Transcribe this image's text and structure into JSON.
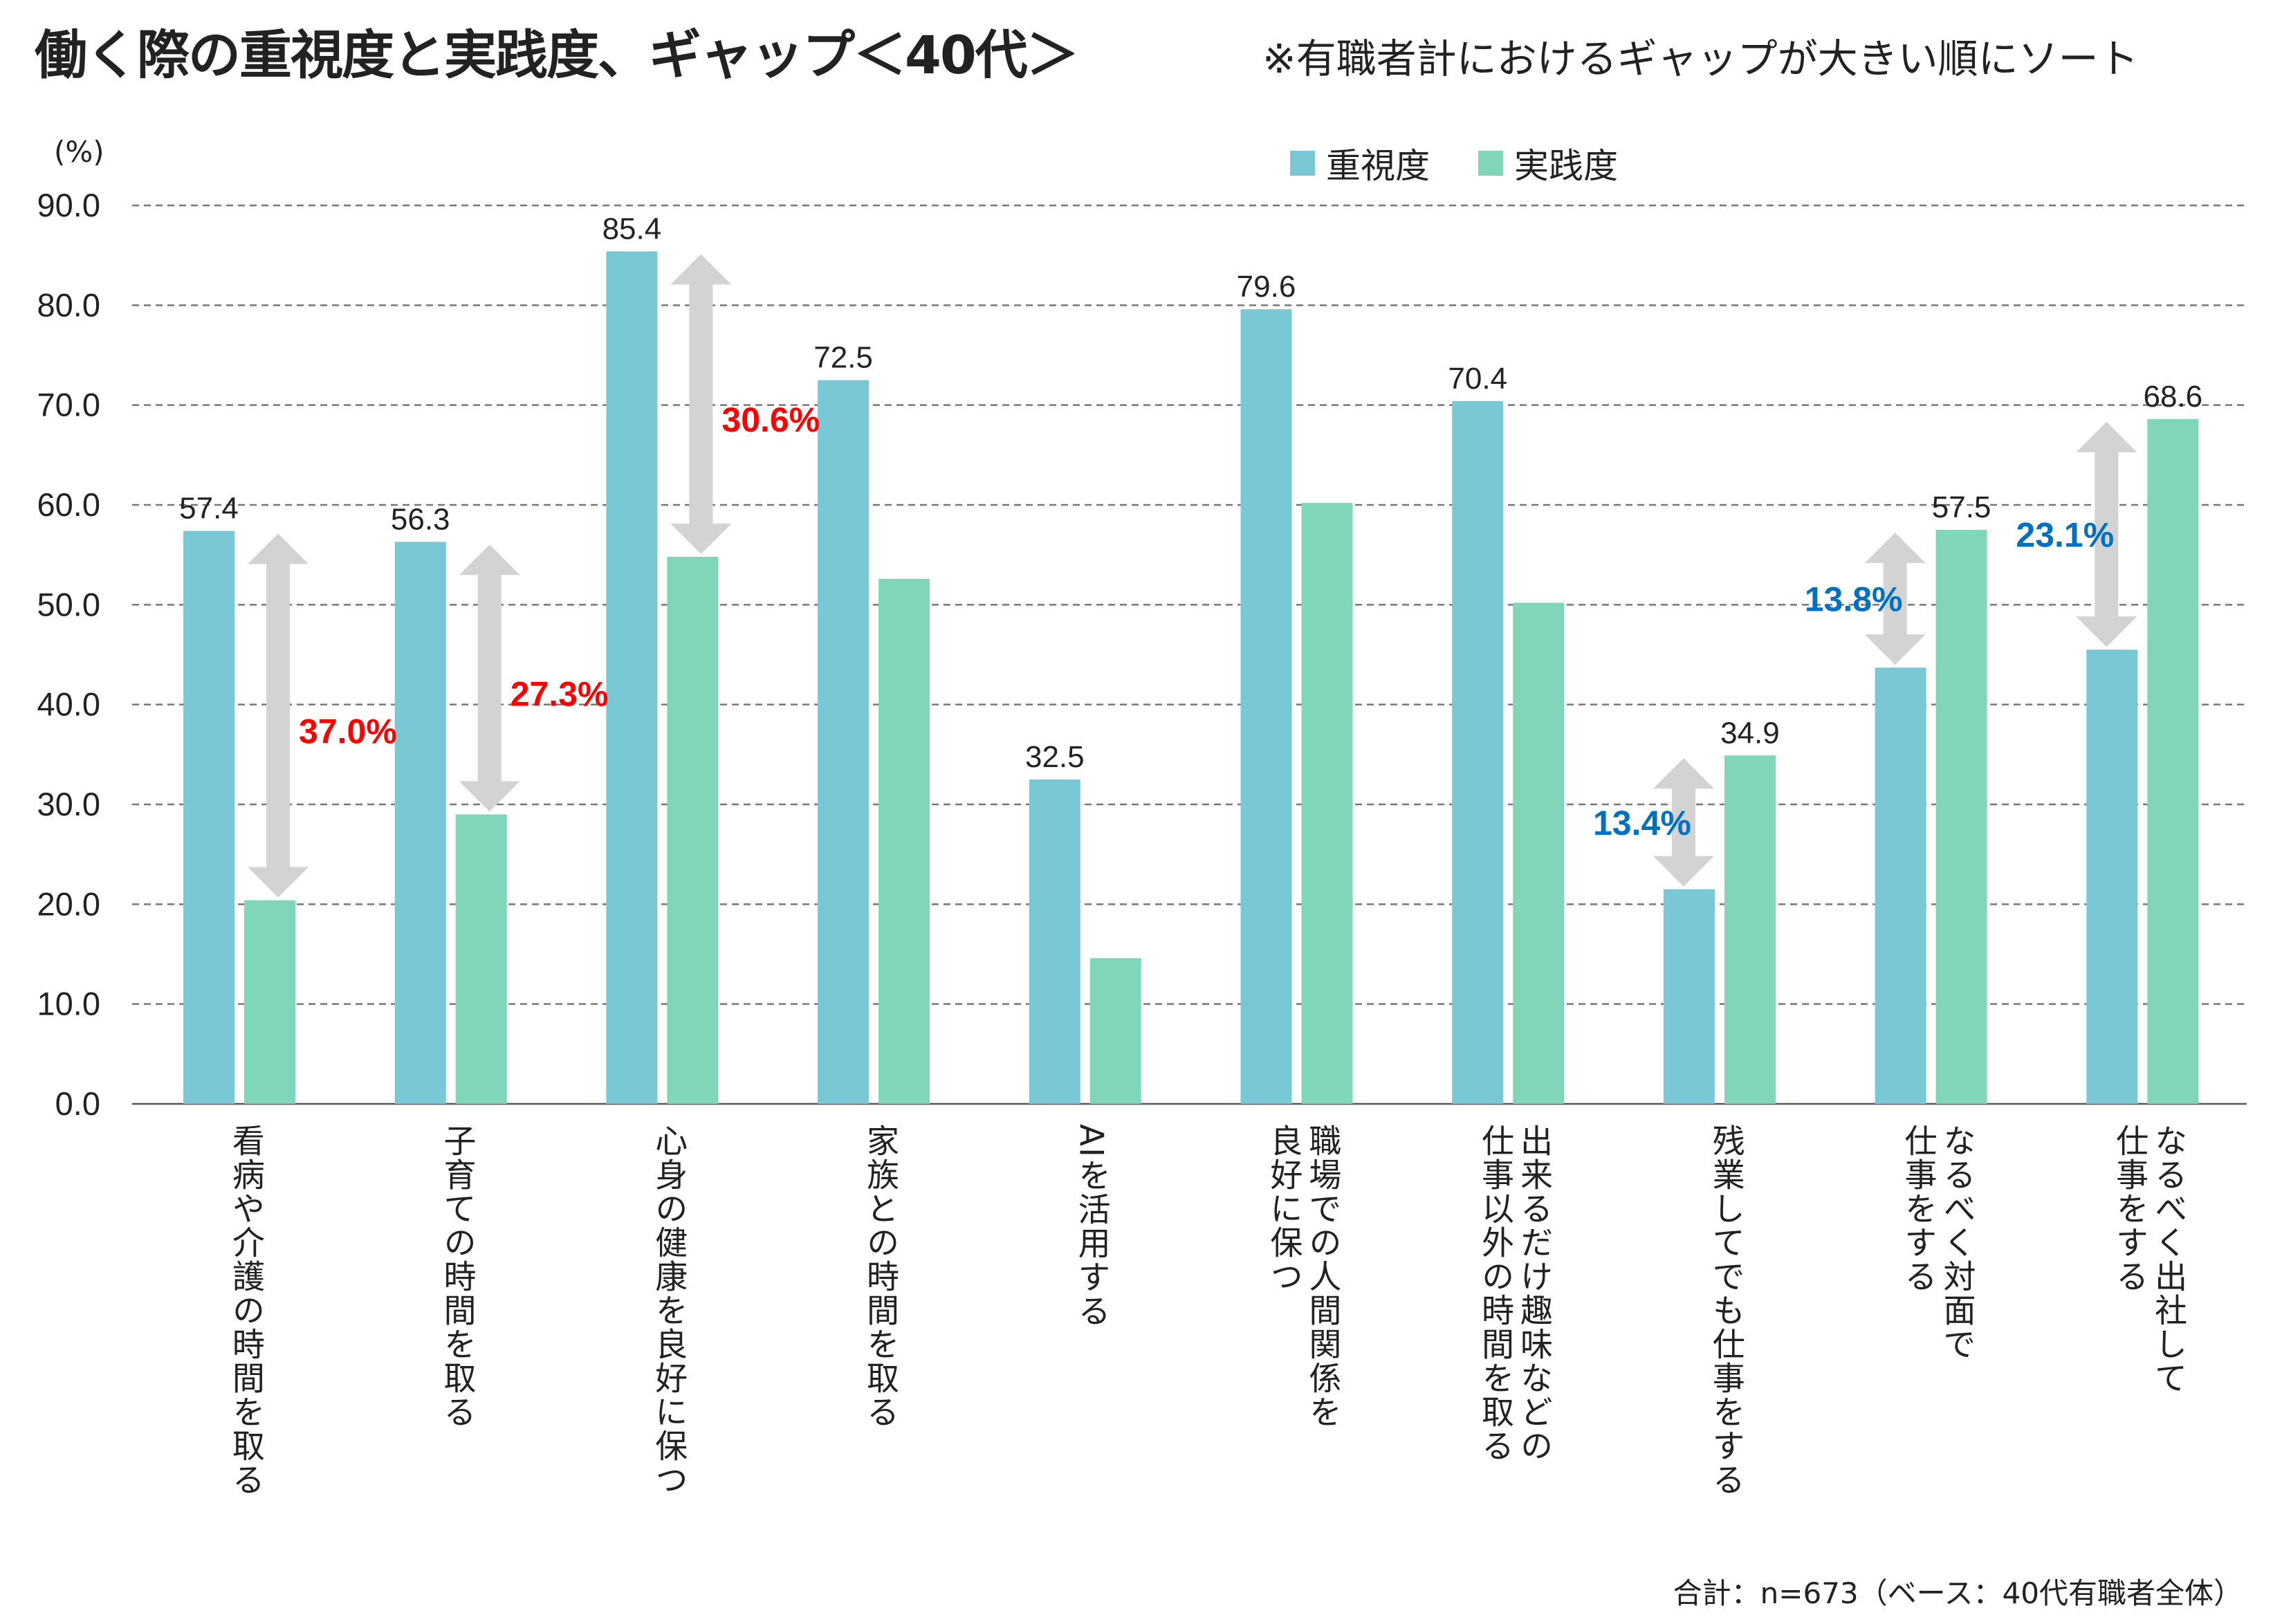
{
  "title": "働く際の重視度と実践度、ギャップ＜40代＞",
  "subtitle": "※有職者計におけるギャップが大きい順にソート",
  "footnote": "合計：n=673（ベース：40代有職者全体）",
  "chart_data": {
    "type": "bar",
    "ylabel": "(%)",
    "ylim": [
      0,
      90
    ],
    "yticks": [
      "0.0",
      "10.0",
      "20.0",
      "30.0",
      "40.0",
      "50.0",
      "60.0",
      "70.0",
      "80.0",
      "90.0"
    ],
    "grid": true,
    "legend_position": "top-right",
    "categories": [
      "看病や介護の時間を取る",
      "子育ての時間を取る",
      "心身の健康を良好に保つ",
      "家族との時間を取る",
      "AIを活用する",
      "職場での人間関係を\n良好に保つ",
      "出来るだけ趣味などの\n仕事以外の時間を取る",
      "残業してでも仕事をする",
      "なるべく対面で\n仕事をする",
      "なるべく出社して\n仕事をする"
    ],
    "series": [
      {
        "name": "重視度",
        "color": "#79C8D6",
        "values": [
          57.4,
          56.3,
          85.4,
          72.5,
          32.5,
          79.6,
          70.4,
          21.5,
          43.7,
          45.5
        ],
        "labeled": [
          true,
          true,
          true,
          true,
          true,
          true,
          true,
          false,
          false,
          false
        ]
      },
      {
        "name": "実践度",
        "color": "#80D6B8",
        "values": [
          20.4,
          29.0,
          54.8,
          52.6,
          14.6,
          60.2,
          50.2,
          34.9,
          57.5,
          68.6
        ],
        "labeled": [
          false,
          false,
          false,
          false,
          false,
          false,
          false,
          true,
          true,
          true
        ]
      }
    ],
    "gaps": [
      {
        "index": 0,
        "label": "37.0%",
        "color": "#FF0000"
      },
      {
        "index": 1,
        "label": "27.3%",
        "color": "#FF0000"
      },
      {
        "index": 2,
        "label": "30.6%",
        "color": "#FF0000"
      },
      {
        "index": 7,
        "label": "13.4%",
        "color": "#0070C0"
      },
      {
        "index": 8,
        "label": "13.8%",
        "color": "#0070C0"
      },
      {
        "index": 9,
        "label": "23.1%",
        "color": "#0070C0"
      }
    ]
  }
}
